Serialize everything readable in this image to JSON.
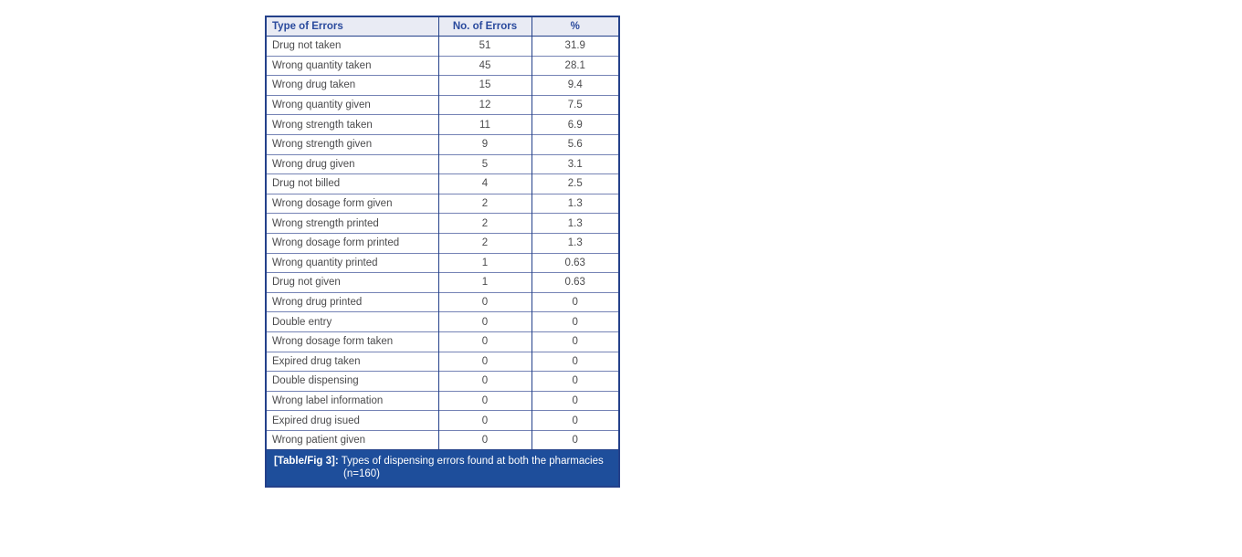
{
  "figure": {
    "columns": [
      "Type of Errors",
      "No. of Errors",
      "%"
    ],
    "rows": [
      {
        "type": "Drug not taken",
        "count": "51",
        "percent": "31.9"
      },
      {
        "type": "Wrong quantity taken",
        "count": "45",
        "percent": "28.1"
      },
      {
        "type": "Wrong drug taken",
        "count": "15",
        "percent": "9.4"
      },
      {
        "type": "Wrong quantity given",
        "count": "12",
        "percent": "7.5"
      },
      {
        "type": "Wrong strength taken",
        "count": "11",
        "percent": "6.9"
      },
      {
        "type": "Wrong strength given",
        "count": "9",
        "percent": "5.6"
      },
      {
        "type": "Wrong drug given",
        "count": "5",
        "percent": "3.1"
      },
      {
        "type": "Drug not billed",
        "count": "4",
        "percent": "2.5"
      },
      {
        "type": "Wrong dosage form given",
        "count": "2",
        "percent": "1.3"
      },
      {
        "type": "Wrong strength printed",
        "count": "2",
        "percent": "1.3"
      },
      {
        "type": "Wrong dosage form printed",
        "count": "2",
        "percent": "1.3"
      },
      {
        "type": "Wrong quantity printed",
        "count": "1",
        "percent": "0.63"
      },
      {
        "type": "Drug not given",
        "count": "1",
        "percent": "0.63"
      },
      {
        "type": "Wrong drug printed",
        "count": "0",
        "percent": "0"
      },
      {
        "type": "Double entry",
        "count": "0",
        "percent": "0"
      },
      {
        "type": "Wrong dosage form taken",
        "count": "0",
        "percent": "0"
      },
      {
        "type": "Expired drug taken",
        "count": "0",
        "percent": "0"
      },
      {
        "type": "Double dispensing",
        "count": "0",
        "percent": "0"
      },
      {
        "type": "Wrong label information",
        "count": "0",
        "percent": "0"
      },
      {
        "type": "Expired drug isued",
        "count": "0",
        "percent": "0"
      },
      {
        "type": "Wrong patient given",
        "count": "0",
        "percent": "0"
      }
    ],
    "caption": {
      "label": "[Table/Fig 3]:",
      "text": "Types of dispensing errors found at both the pharmacies",
      "note": "(n=160)"
    },
    "colors": {
      "frame_border": "#24418a",
      "header_bg": "#e9ebf4",
      "header_text": "#2a4a9d",
      "body_text": "#4a4a4c",
      "row_separator": "#7583b5",
      "caption_bg": "#1e4e9b",
      "caption_text": "#ffffff"
    }
  }
}
